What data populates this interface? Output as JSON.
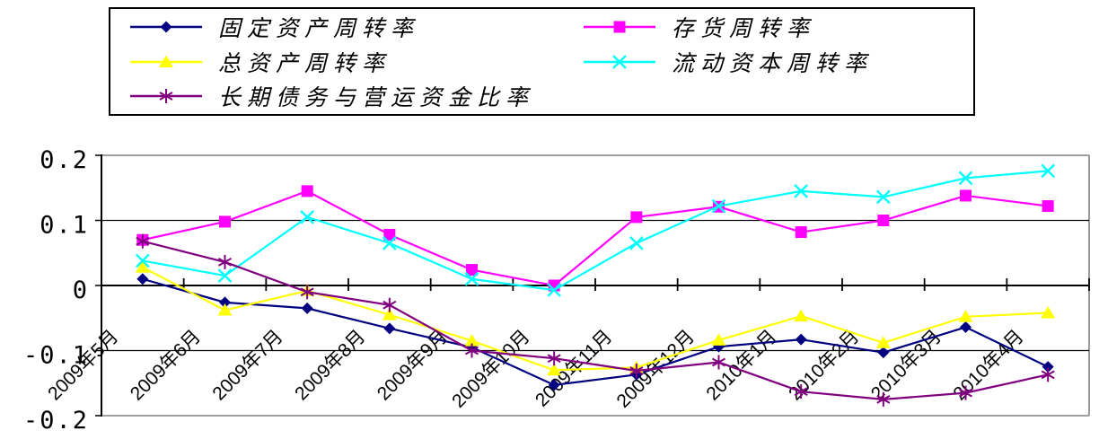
{
  "page": {
    "background": "#ffffff"
  },
  "chart_data": {
    "type": "line",
    "title": "",
    "xlabel": "",
    "ylabel": "",
    "grid": true,
    "legend_position": "top",
    "ylim": [
      -0.2,
      0.2
    ],
    "y_ticks": [
      {
        "label": "0.2",
        "value": 0.2
      },
      {
        "label": "0.1",
        "value": 0.1
      },
      {
        "label": "0",
        "value": 0.0
      },
      {
        "label": "-0.1",
        "value": -0.1
      },
      {
        "label": "-0.2",
        "value": -0.2
      }
    ],
    "categories": [
      "2009年5月",
      "2009年6月",
      "2009年7月",
      "2009年8月",
      "2009年9月",
      "2009年10月",
      "2009年11月",
      "2009年12月",
      "2010年1月",
      "2010年2月",
      "2010年3月",
      "2010年4月"
    ],
    "series": [
      {
        "name": "固定资产周转率",
        "color": "#000080",
        "marker": "diamond",
        "values": [
          0.01,
          -0.026,
          -0.035,
          -0.066,
          -0.095,
          -0.153,
          -0.137,
          -0.094,
          -0.083,
          -0.103,
          -0.064,
          -0.125
        ]
      },
      {
        "name": "存货周转率",
        "color": "#FF00FF",
        "marker": "square",
        "values": [
          0.07,
          0.098,
          0.145,
          0.078,
          0.024,
          0.0,
          0.105,
          0.121,
          0.082,
          0.1,
          0.138,
          0.122
        ]
      },
      {
        "name": "总资产周转率",
        "color": "#FFFF00",
        "marker": "triangle",
        "values": [
          0.028,
          -0.038,
          -0.008,
          -0.045,
          -0.085,
          -0.13,
          -0.126,
          -0.084,
          -0.047,
          -0.088,
          -0.048,
          -0.042
        ]
      },
      {
        "name": "流动资本周转率",
        "color": "#00FFFF",
        "marker": "x",
        "values": [
          0.038,
          0.015,
          0.105,
          0.065,
          0.01,
          -0.007,
          0.065,
          0.122,
          0.145,
          0.136,
          0.165,
          0.176
        ]
      },
      {
        "name": "长期债务与营运资金比率",
        "color": "#800080",
        "marker": "asterisk",
        "values": [
          0.068,
          0.036,
          -0.01,
          -0.03,
          -0.1,
          -0.112,
          -0.131,
          -0.118,
          -0.163,
          -0.175,
          -0.165,
          -0.137
        ]
      }
    ],
    "colors": {
      "gridline": "#000000",
      "axis": "#000000",
      "plot_border": "#808080",
      "text": "#000000"
    }
  }
}
